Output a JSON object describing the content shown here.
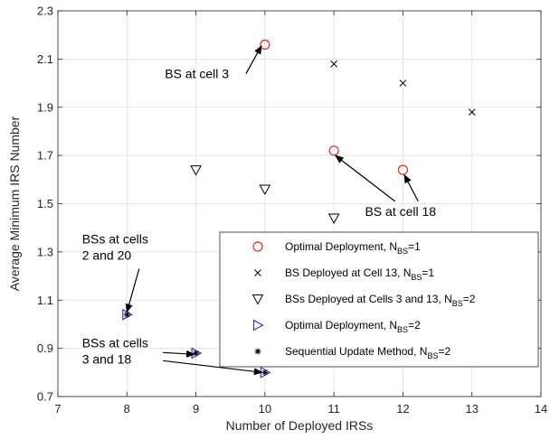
{
  "chart_data": {
    "type": "scatter",
    "xlabel": "Number of Deployed IRSs",
    "ylabel": "Average Minimum IRS Number",
    "xlim": [
      7,
      14
    ],
    "ylim": [
      0.7,
      2.3
    ],
    "xticks": [
      7,
      8,
      9,
      10,
      11,
      12,
      13,
      14
    ],
    "yticks": [
      0.7,
      0.9,
      1.1,
      1.3,
      1.5,
      1.7,
      1.9,
      2.1,
      2.3
    ],
    "grid": true,
    "legend_position": "bottom-right",
    "series": [
      {
        "name": "Optimal Deployment, N",
        "name_sub": "BS",
        "name_tail": "=1",
        "marker": "circle",
        "color": "#e8251f",
        "points": [
          [
            10,
            2.16
          ],
          [
            11,
            1.72
          ],
          [
            12,
            1.64
          ]
        ]
      },
      {
        "name": "BS Deployed at Cell 13, N",
        "name_sub": "BS",
        "name_tail": "=1",
        "marker": "x",
        "color": "#000000",
        "points": [
          [
            11,
            2.08
          ],
          [
            12,
            2.0
          ],
          [
            13,
            1.88
          ]
        ]
      },
      {
        "name": "BSs Deployed at Cells 3 and 13, N",
        "name_sub": "BS",
        "name_tail": "=2",
        "marker": "triangle-down",
        "color": "#000000",
        "points": [
          [
            9,
            1.64
          ],
          [
            10,
            1.56
          ],
          [
            11,
            1.44
          ]
        ]
      },
      {
        "name": "Optimal Deployment, N",
        "name_sub": "BS",
        "name_tail": "=2",
        "marker": "triangle-right",
        "color": "#2b2bd6",
        "points": [
          [
            8,
            1.04
          ],
          [
            9,
            0.88
          ],
          [
            10,
            0.8
          ]
        ]
      },
      {
        "name": "Sequential Update Method, N",
        "name_sub": "BS",
        "name_tail": "=2",
        "marker": "star",
        "color": "#000000",
        "points": [
          [
            8,
            1.04
          ],
          [
            9,
            0.88
          ],
          [
            10,
            0.8
          ]
        ]
      }
    ],
    "annotations": [
      {
        "lines": [
          "BS at cell 3"
        ],
        "text_at": [
          8.55,
          2.02
        ],
        "arrows_to": [
          [
            9.95,
            2.155
          ]
        ]
      },
      {
        "lines": [
          "BS at cell 18"
        ],
        "text_at": [
          11.45,
          1.45
        ],
        "arrows_to": [
          [
            11.02,
            1.7
          ],
          [
            12.02,
            1.62
          ]
        ]
      },
      {
        "lines": [
          "BSs at cells",
          "2 and 20"
        ],
        "text_at": [
          7.35,
          1.335
        ],
        "arrows_to": [
          [
            8.0,
            1.05
          ]
        ]
      },
      {
        "lines": [
          "BSs at cells",
          "3 and 18"
        ],
        "text_at": [
          7.35,
          0.905
        ],
        "arrows_to": [
          [
            8.98,
            0.875
          ],
          [
            9.96,
            0.8
          ]
        ]
      }
    ]
  }
}
